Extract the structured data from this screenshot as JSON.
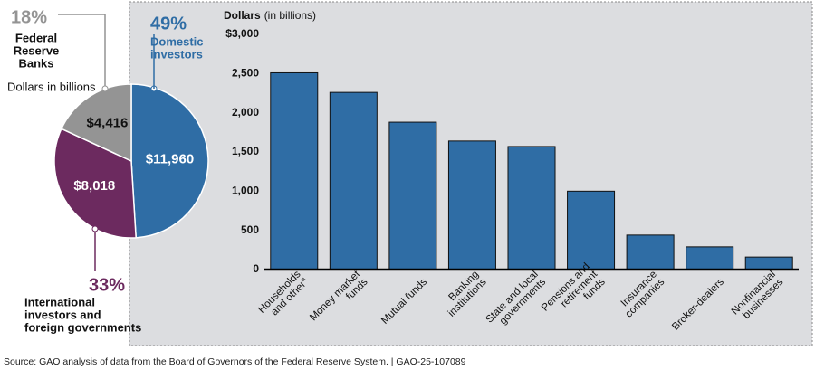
{
  "chart_data": [
    {
      "type": "pie",
      "subtitle": "Dollars in billions",
      "series": [
        {
          "name": [
            "Domestic",
            "investors"
          ],
          "color": "#2f6da5",
          "value": 11960,
          "value_label": "$11,960",
          "share_label": "49%",
          "share": 49
        },
        {
          "name": [
            "International",
            "investors and",
            "foreign governments"
          ],
          "color": "#6c2a5f",
          "value": 8018,
          "value_label": "$8,018",
          "share_label": "33%",
          "share": 33
        },
        {
          "name": [
            "Federal",
            "Reserve",
            "Banks"
          ],
          "color": "#949494",
          "value": 4416,
          "value_label": "$4,416",
          "share_label": "18%",
          "share": 18
        }
      ]
    },
    {
      "type": "bar",
      "y_label": "Dollars",
      "y_label_unit": "(in billions)",
      "categories": [
        [
          "Households",
          "and other"
        ],
        [
          "Money market",
          "funds"
        ],
        [
          "Mutual funds"
        ],
        [
          "Banking",
          "institutions"
        ],
        [
          "State and local",
          "governments"
        ],
        [
          "Pensions and",
          "retirement",
          "funds"
        ],
        [
          "Insurance",
          "companies"
        ],
        [
          "Broker-dealers"
        ],
        [
          "Nonfinancial",
          "businesses"
        ]
      ],
      "footnote_marker": "a",
      "values": [
        2510,
        2260,
        1880,
        1640,
        1570,
        1000,
        440,
        290,
        160
      ],
      "color": "#2f6da5",
      "ylim": [
        0,
        3000
      ],
      "yticks": [
        0,
        500,
        {
          "value": 1000,
          "label": "1,000"
        },
        {
          "value": 1500,
          "label": "1,500"
        },
        {
          "value": 2000,
          "label": "2,000"
        },
        {
          "value": 2500,
          "label": "2,500"
        },
        {
          "value": 3000,
          "label": "$3,000"
        }
      ]
    }
  ],
  "source": "Source: GAO analysis of data from the Board of Governors of the Federal Reserve System.  |  GAO-25-107089"
}
